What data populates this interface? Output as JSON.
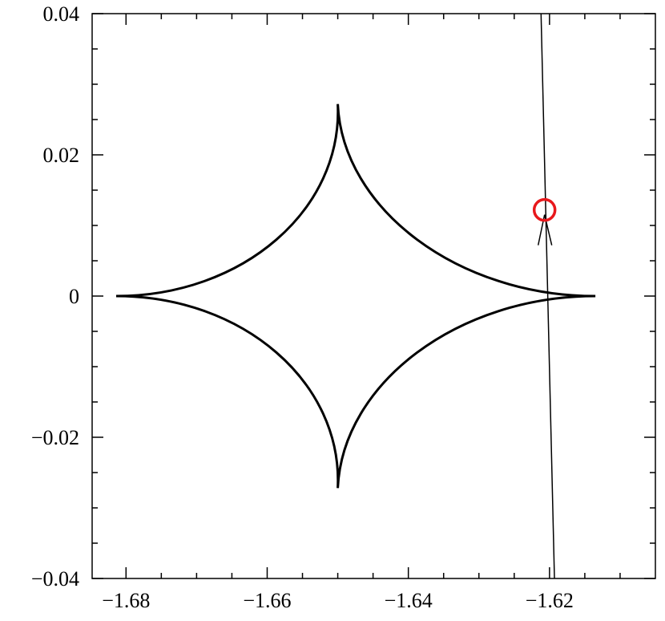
{
  "chart_data": {
    "type": "caustic",
    "caustic": {
      "x": [
        -1.6814,
        -1.65,
        -1.6135,
        -1.65
      ],
      "y": [
        0,
        0.0272,
        0,
        -0.0272
      ],
      "color": "#000000"
    },
    "trajectory": {
      "x": [
        -1.6212,
        -1.6193
      ],
      "y": [
        0.04,
        -0.04
      ],
      "color": "#000000"
    },
    "source": {
      "x": -1.6207,
      "y": 0.0122,
      "color": "#e8181c"
    },
    "xlim": [
      -1.6848,
      -1.605
    ],
    "ylim": [
      -0.04,
      0.04
    ],
    "xticks": [
      {
        "value": -1.68,
        "label": "−1.68"
      },
      {
        "value": -1.66,
        "label": "−1.66"
      },
      {
        "value": -1.64,
        "label": "−1.64"
      },
      {
        "value": -1.62,
        "label": "−1.62"
      }
    ],
    "yticks": [
      {
        "value": -0.04,
        "label": "−0.04"
      },
      {
        "value": -0.02,
        "label": "−0.02"
      },
      0,
      0.02,
      0.04
    ],
    "xminorticks": [
      -1.675,
      -1.67,
      -1.665,
      -1.655,
      -1.65,
      -1.645,
      -1.635,
      -1.63,
      -1.625,
      -1.615,
      -1.61
    ],
    "yminorticks": [
      -0.035,
      -0.03,
      -0.025,
      -0.015,
      -0.01,
      -0.005,
      0.005,
      0.01,
      0.015,
      0.025,
      0.03,
      0.035
    ]
  }
}
